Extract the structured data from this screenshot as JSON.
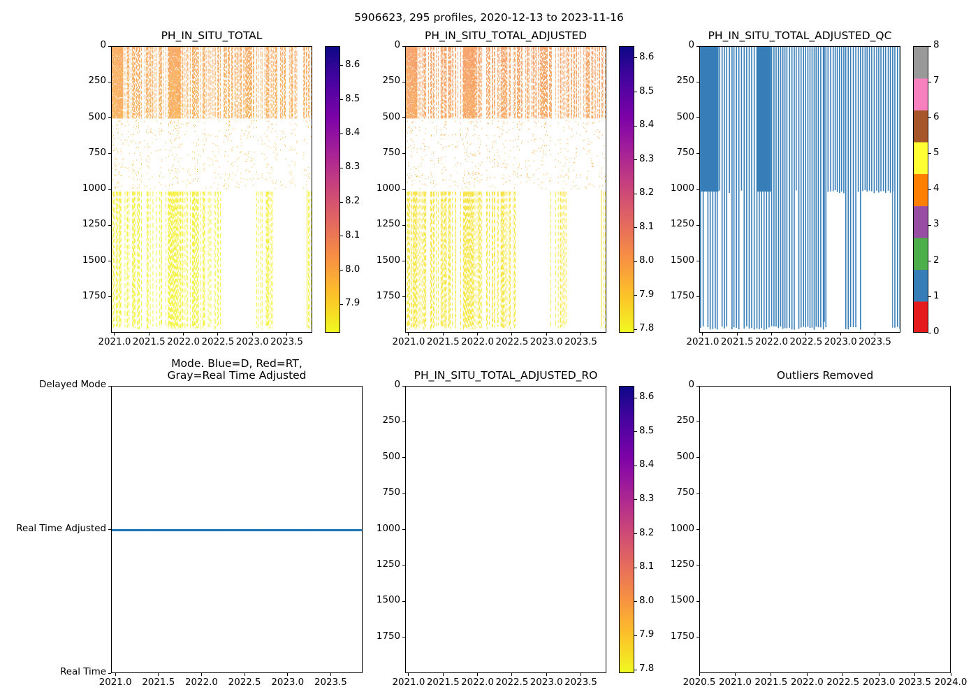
{
  "figure": {
    "suptitle": "5906623, 295 profiles, 2020-12-13 to 2023-11-16"
  },
  "chart_data": [
    {
      "id": "ph-raw",
      "type": "heatmap",
      "title": "PH_IN_SITU_TOTAL",
      "xlabel": "",
      "ylabel": "",
      "xlim": [
        2020.95,
        2023.87
      ],
      "ylim": [
        2000,
        0
      ],
      "xticks": [
        "2021.0",
        "2021.5",
        "2022.0",
        "2022.5",
        "2023.0",
        "2023.5"
      ],
      "xtick_values": [
        2021.0,
        2021.5,
        2022.0,
        2022.5,
        2023.0,
        2023.5
      ],
      "yticks": [
        "0",
        "250",
        "500",
        "750",
        "1000",
        "1250",
        "1500",
        "1750"
      ],
      "ytick_values": [
        0,
        250,
        500,
        750,
        1000,
        1250,
        1500,
        1750
      ],
      "colormap": "plasma_r",
      "colorbar": {
        "range": [
          7.817,
          8.657
        ],
        "ticks": [
          "7.9",
          "8.0",
          "8.1",
          "8.2",
          "8.3",
          "8.4",
          "8.5",
          "8.6"
        ],
        "tick_values": [
          7.9,
          8.0,
          8.1,
          8.2,
          8.3,
          8.4,
          8.5,
          8.6
        ]
      },
      "profiles": 295,
      "layers": [
        {
          "depth_range": [
            0,
            500
          ],
          "approx_value": 8.02,
          "density": "dense"
        },
        {
          "depth_range": [
            500,
            1000
          ],
          "approx_value": 7.95,
          "density": "sparse"
        },
        {
          "depth_range": [
            1000,
            1970
          ],
          "approx_value": 7.84,
          "density": "vertical dashes"
        }
      ],
      "deep_profile_gaps": [
        [
          2022.55,
          2023.05
        ],
        [
          2023.3,
          2023.8
        ]
      ]
    },
    {
      "id": "ph-adjusted",
      "type": "heatmap",
      "title": "PH_IN_SITU_TOTAL_ADJUSTED",
      "xlabel": "",
      "ylabel": "",
      "xlim": [
        2020.95,
        2023.87
      ],
      "ylim": [
        2000,
        0
      ],
      "xticks": [
        "2021.0",
        "2021.5",
        "2022.0",
        "2022.5",
        "2023.0",
        "2023.5"
      ],
      "xtick_values": [
        2021.0,
        2021.5,
        2022.0,
        2022.5,
        2023.0,
        2023.5
      ],
      "yticks": [
        "0",
        "250",
        "500",
        "750",
        "1000",
        "1250",
        "1500",
        "1750"
      ],
      "ytick_values": [
        0,
        250,
        500,
        750,
        1000,
        1250,
        1500,
        1750
      ],
      "colormap": "plasma_r",
      "colorbar": {
        "range": [
          7.79,
          8.635
        ],
        "ticks": [
          "7.8",
          "7.9",
          "8.0",
          "8.1",
          "8.2",
          "8.3",
          "8.4",
          "8.5",
          "8.6"
        ],
        "tick_values": [
          7.8,
          7.9,
          8.0,
          8.1,
          8.2,
          8.3,
          8.4,
          8.5,
          8.6
        ]
      },
      "profiles": 295,
      "layers": [
        {
          "depth_range": [
            0,
            500
          ],
          "approx_value": 8.03,
          "density": "dense"
        },
        {
          "depth_range": [
            500,
            1000
          ],
          "approx_value": 7.95,
          "density": "sparse"
        },
        {
          "depth_range": [
            1000,
            1970
          ],
          "approx_value": 7.84,
          "density": "vertical dashes"
        }
      ],
      "deep_profile_gaps": [
        [
          2022.55,
          2023.05
        ],
        [
          2023.3,
          2023.8
        ]
      ]
    },
    {
      "id": "ph-adjusted-qc",
      "type": "heatmap",
      "title": "PH_IN_SITU_TOTAL_ADJUSTED_QC",
      "xlabel": "",
      "ylabel": "",
      "xlim": [
        2020.95,
        2023.87
      ],
      "ylim": [
        2000,
        0
      ],
      "xticks": [
        "2021.0",
        "2021.5",
        "2022.0",
        "2022.5",
        "2023.0",
        "2023.5"
      ],
      "xtick_values": [
        2021.0,
        2021.5,
        2022.0,
        2022.5,
        2023.0,
        2023.5
      ],
      "yticks": [
        "0",
        "250",
        "500",
        "750",
        "1000",
        "1250",
        "1500",
        "1750"
      ],
      "ytick_values": [
        0,
        250,
        500,
        750,
        1000,
        1250,
        1500,
        1750
      ],
      "colorbar": {
        "range": [
          0,
          8
        ],
        "ticks": [
          "0",
          "1",
          "2",
          "3",
          "4",
          "5",
          "6",
          "7",
          "8"
        ],
        "tick_values": [
          0,
          1,
          2,
          3,
          4,
          5,
          6,
          7,
          8
        ],
        "categories": [
          {
            "qc": 0,
            "color": "#e41a1c"
          },
          {
            "qc": 1,
            "color": "#377eb8"
          },
          {
            "qc": 2,
            "color": "#4daf4a"
          },
          {
            "qc": 3,
            "color": "#984ea3"
          },
          {
            "qc": 4,
            "color": "#ff7f00"
          },
          {
            "qc": 5,
            "color": "#ffff33"
          },
          {
            "qc": 6,
            "color": "#a65628"
          },
          {
            "qc": 7,
            "color": "#f781bf"
          },
          {
            "qc": 8,
            "color": "#999999"
          }
        ]
      },
      "dominant_qc": 1,
      "qc_color": "#377eb8",
      "shallow_depth_limit": 1000,
      "max_depth": 1970
    },
    {
      "id": "mode",
      "type": "scatter",
      "title": "Mode. Blue=D, Red=RT,\nGray=Real Time Adjusted",
      "xlabel": "",
      "ylabel": "",
      "xlim": [
        2020.95,
        2023.87
      ],
      "xticks": [
        "2021.0",
        "2021.5",
        "2022.0",
        "2022.5",
        "2023.0",
        "2023.5"
      ],
      "xtick_values": [
        2021.0,
        2021.5,
        2022.0,
        2022.5,
        2023.0,
        2023.5
      ],
      "yticks": [
        "Real Time",
        "Real Time Adjusted",
        "Delayed Mode"
      ],
      "ytick_values": [
        0,
        1,
        2
      ],
      "ylim": [
        0,
        2
      ],
      "series": [
        {
          "name": "Real Time Adjusted",
          "y": 1,
          "color": "#1f77b4",
          "x_range": [
            2020.95,
            2023.87
          ],
          "count": 295
        }
      ]
    },
    {
      "id": "ph-adjusted-ro",
      "type": "heatmap",
      "title": "PH_IN_SITU_TOTAL_ADJUSTED_RO",
      "xlabel": "",
      "ylabel": "",
      "xlim": [
        2020.95,
        2023.87
      ],
      "ylim": [
        2000,
        0
      ],
      "xticks": [
        "2021.0",
        "2021.5",
        "2022.0",
        "2022.5",
        "2023.0",
        "2023.5"
      ],
      "xtick_values": [
        2021.0,
        2021.5,
        2022.0,
        2022.5,
        2023.0,
        2023.5
      ],
      "yticks": [
        "0",
        "250",
        "500",
        "750",
        "1000",
        "1250",
        "1500",
        "1750"
      ],
      "ytick_values": [
        0,
        250,
        500,
        750,
        1000,
        1250,
        1500,
        1750
      ],
      "colormap": "plasma_r",
      "colorbar": {
        "range": [
          7.79,
          8.635
        ],
        "ticks": [
          "7.8",
          "7.9",
          "8.0",
          "8.1",
          "8.2",
          "8.3",
          "8.4",
          "8.5",
          "8.6"
        ],
        "tick_values": [
          7.8,
          7.9,
          8.0,
          8.1,
          8.2,
          8.3,
          8.4,
          8.5,
          8.6
        ]
      },
      "values": []
    },
    {
      "id": "outliers",
      "type": "scatter",
      "title": "Outliers Removed",
      "xlabel": "",
      "ylabel": "",
      "xlim": [
        2020.5,
        2024.0
      ],
      "ylim": [
        2000,
        0
      ],
      "xticks": [
        "2020.5",
        "2021.0",
        "2021.5",
        "2022.0",
        "2022.5",
        "2023.0",
        "2023.5",
        "2024.0"
      ],
      "xtick_values": [
        2020.5,
        2021.0,
        2021.5,
        2022.0,
        2022.5,
        2023.0,
        2023.5,
        2024.0
      ],
      "yticks": [
        "0",
        "250",
        "500",
        "750",
        "1000",
        "1250",
        "1500",
        "1750"
      ],
      "ytick_values": [
        0,
        250,
        500,
        750,
        1000,
        1250,
        1500,
        1750
      ],
      "values": []
    }
  ]
}
